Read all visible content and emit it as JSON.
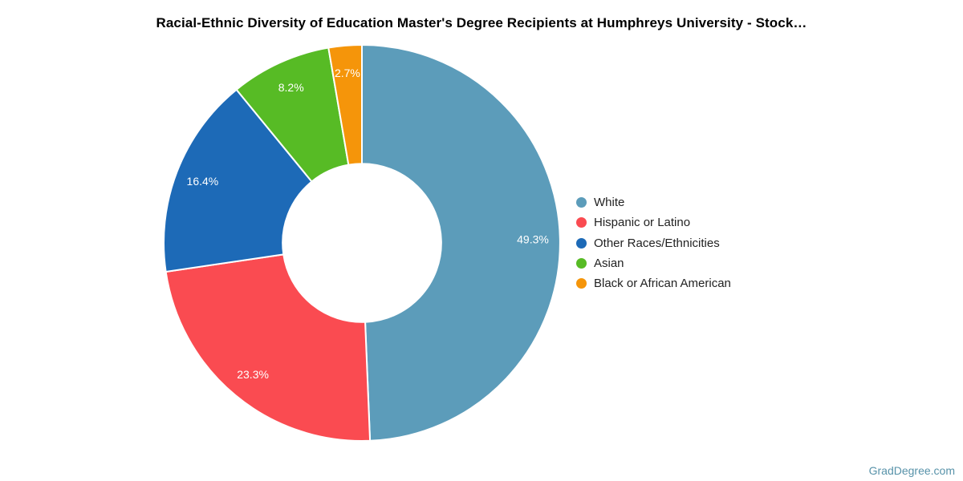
{
  "title": "Racial-Ethnic Diversity of Education Master's Degree Recipients at Humphreys University - Stock…",
  "watermark": "GradDegree.com",
  "chart_data": {
    "type": "pie",
    "subtype": "donut",
    "title": "Racial-Ethnic Diversity of Education Master's Degree Recipients at Humphreys University - Stock…",
    "categories": [
      "White",
      "Hispanic or Latino",
      "Other Races/Ethnicities",
      "Asian",
      "Black or African American"
    ],
    "values": [
      49.3,
      23.3,
      16.4,
      8.2,
      2.7
    ],
    "slice_labels": [
      "49.3%",
      "23.3%",
      "16.4%",
      "8.2%",
      "2.7%"
    ],
    "unit": "%",
    "colors": [
      "#5C9CBA",
      "#FA4B51",
      "#1D6AB7",
      "#57BB25",
      "#F5950A"
    ],
    "slice_label_color": "#ffffff",
    "start_angle_deg": 0,
    "direction": "clockwise",
    "inner_radius_ratio": 0.4,
    "legend_position": "right"
  }
}
